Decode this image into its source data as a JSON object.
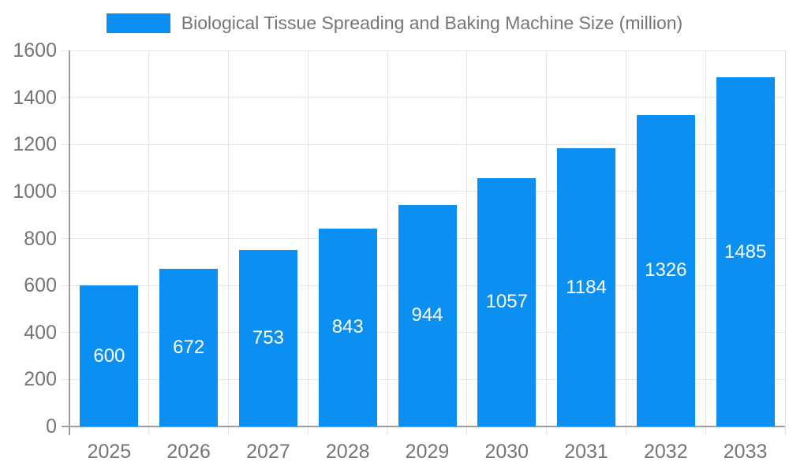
{
  "legend": {
    "label": "Biological Tissue Spreading and Baking Machine Size (million)"
  },
  "colors": {
    "bar": "#0b90f2",
    "grid": "#e5e5e5",
    "axis": "#9e9e9e",
    "tick_text": "#757575",
    "value_text": "#ffffff",
    "background": "#ffffff"
  },
  "chart_data": {
    "type": "bar",
    "title": "Biological Tissue Spreading and Baking Machine Size (million)",
    "categories": [
      "2025",
      "2026",
      "2027",
      "2028",
      "2029",
      "2030",
      "2031",
      "2032",
      "2033"
    ],
    "values": [
      600,
      672,
      753,
      843,
      944,
      1057,
      1184,
      1326,
      1485
    ],
    "xlabel": "",
    "ylabel": "",
    "ylim": [
      0,
      1600
    ],
    "ytick_step": 200,
    "grid": true,
    "legend_position": "top",
    "value_label_position": "inside-center"
  }
}
